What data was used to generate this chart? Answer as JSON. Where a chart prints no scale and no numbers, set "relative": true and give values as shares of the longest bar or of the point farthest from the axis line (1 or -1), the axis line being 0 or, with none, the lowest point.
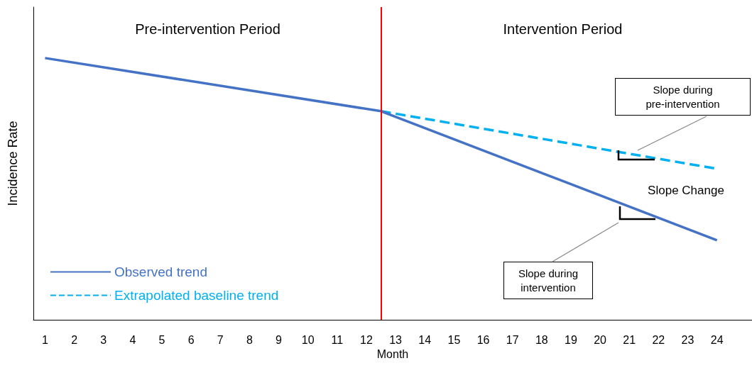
{
  "chart_data": {
    "type": "line",
    "relative": true,
    "xlabel": "Month",
    "ylabel": "Incidence Rate",
    "xlim": [
      0.6,
      25.2
    ],
    "xticks": [
      1,
      2,
      3,
      4,
      5,
      6,
      7,
      8,
      9,
      10,
      11,
      12,
      13,
      14,
      15,
      16,
      17,
      18,
      19,
      20,
      21,
      22,
      23,
      24
    ],
    "series": [
      {
        "name": "Observed trend",
        "color": "#4472c4",
        "x": [
          1,
          12.5,
          24
        ],
        "values": [
          1,
          0.797,
          0.304
        ],
        "line_style": "solid"
      },
      {
        "name": "Extrapolated baseline trend",
        "color": "#00b0f0",
        "x": [
          12.5,
          24
        ],
        "values": [
          0.797,
          0.577
        ],
        "line_style": "dashed"
      }
    ],
    "ref_lines": [
      {
        "axis": "x",
        "value": 12.5,
        "color": "#ff0000"
      }
    ],
    "annotations": [
      "Pre-intervention Period",
      "Intervention Period",
      "Slope during pre-intervention",
      "Slope Change",
      "Slope during intervention"
    ],
    "legend": "bottom left",
    "marker": "none",
    "grid": false
  }
}
